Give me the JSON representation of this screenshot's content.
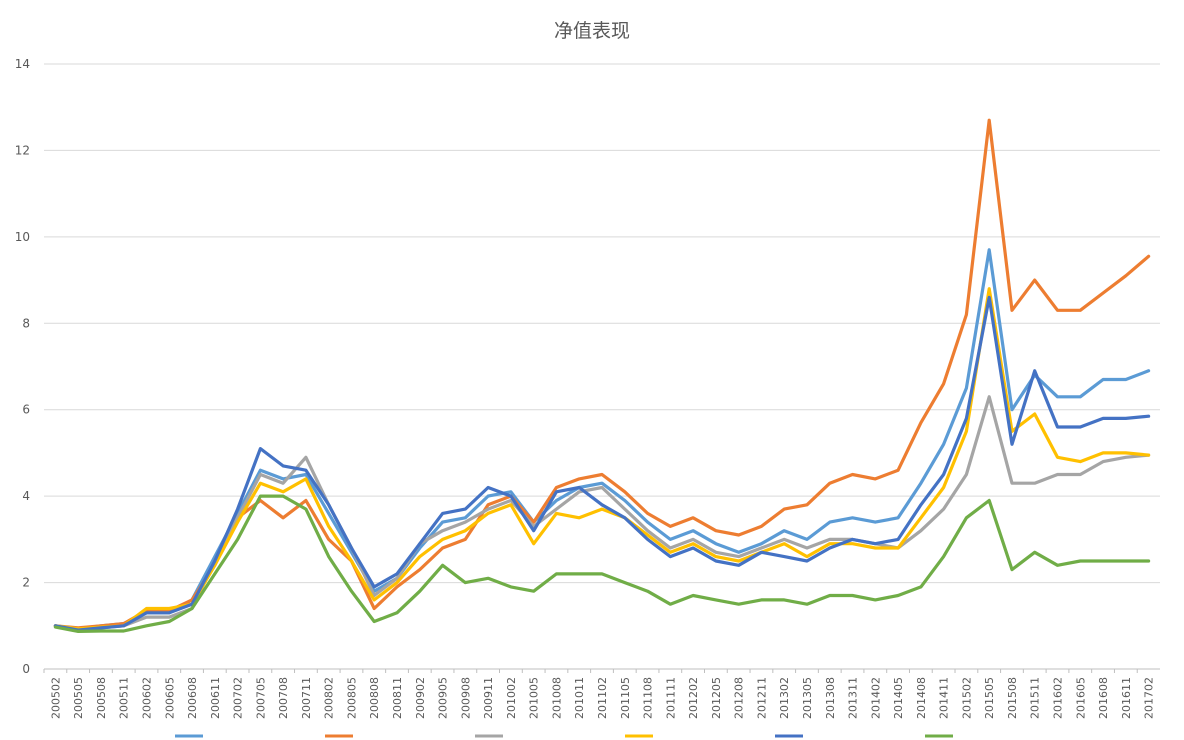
{
  "chart_data": {
    "type": "line",
    "title": "净值表现",
    "xlabel": "",
    "ylabel": "",
    "ylim": [
      0,
      14
    ],
    "yticks": [
      0,
      2,
      4,
      6,
      8,
      10,
      12,
      14
    ],
    "grid": true,
    "legend_position": "bottom",
    "x_tick_labels": [
      "200502",
      "200505",
      "200508",
      "200511",
      "200602",
      "200605",
      "200608",
      "200611",
      "200702",
      "200705",
      "200708",
      "200711",
      "200802",
      "200805",
      "200808",
      "200811",
      "200902",
      "200905",
      "200908",
      "200911",
      "201002",
      "201005",
      "201008",
      "201011",
      "201102",
      "201105",
      "201108",
      "201111",
      "201202",
      "201205",
      "201208",
      "201211",
      "201302",
      "201305",
      "201308",
      "201311",
      "201402",
      "201405",
      "201408",
      "201411",
      "201502",
      "201505",
      "201508",
      "201511",
      "201602",
      "201605",
      "201608",
      "201611",
      "201702"
    ],
    "series": [
      {
        "color": "#5B9BD5",
        "values": [
          1.0,
          0.93,
          1.0,
          1.05,
          1.3,
          1.3,
          1.6,
          2.6,
          3.6,
          4.6,
          4.4,
          4.5,
          3.6,
          2.7,
          1.8,
          2.1,
          2.8,
          3.4,
          3.5,
          4.0,
          4.1,
          3.4,
          3.9,
          4.2,
          4.3,
          3.9,
          3.4,
          3.0,
          3.2,
          2.9,
          2.7,
          2.9,
          3.2,
          3.0,
          3.4,
          3.5,
          3.4,
          3.5,
          4.3,
          5.2,
          6.5,
          9.7,
          6.0,
          6.8,
          6.3,
          6.3,
          6.7,
          6.7,
          6.9
        ]
      },
      {
        "color": "#ED7D31",
        "values": [
          1.0,
          0.95,
          1.0,
          1.05,
          1.35,
          1.35,
          1.6,
          2.4,
          3.5,
          3.9,
          3.5,
          3.9,
          3.0,
          2.5,
          1.4,
          1.9,
          2.3,
          2.8,
          3.0,
          3.8,
          4.0,
          3.4,
          4.2,
          4.4,
          4.5,
          4.1,
          3.6,
          3.3,
          3.5,
          3.2,
          3.1,
          3.3,
          3.7,
          3.8,
          4.3,
          4.5,
          4.4,
          4.6,
          5.7,
          6.6,
          8.2,
          12.7,
          8.3,
          9.0,
          8.3,
          8.3,
          8.7,
          9.1,
          9.55
        ]
      },
      {
        "color": "#A5A5A5",
        "values": [
          1.0,
          0.93,
          0.95,
          1.0,
          1.2,
          1.2,
          1.4,
          2.5,
          3.5,
          4.5,
          4.3,
          4.9,
          3.8,
          2.8,
          1.7,
          2.1,
          2.9,
          3.2,
          3.4,
          3.7,
          3.9,
          3.3,
          3.7,
          4.1,
          4.2,
          3.7,
          3.2,
          2.8,
          3.0,
          2.7,
          2.6,
          2.8,
          3.0,
          2.8,
          3.0,
          3.0,
          2.9,
          2.8,
          3.2,
          3.7,
          4.5,
          6.3,
          4.3,
          4.3,
          4.5,
          4.5,
          4.8,
          4.9,
          4.95
        ]
      },
      {
        "color": "#FFC000",
        "values": [
          1.0,
          0.93,
          0.97,
          1.0,
          1.4,
          1.4,
          1.5,
          2.4,
          3.4,
          4.3,
          4.1,
          4.4,
          3.3,
          2.5,
          1.6,
          2.0,
          2.6,
          3.0,
          3.2,
          3.6,
          3.8,
          2.9,
          3.6,
          3.5,
          3.7,
          3.5,
          3.1,
          2.7,
          2.9,
          2.6,
          2.5,
          2.7,
          2.9,
          2.6,
          2.9,
          2.9,
          2.8,
          2.8,
          3.5,
          4.2,
          5.5,
          8.8,
          5.5,
          5.9,
          4.9,
          4.8,
          5.0,
          5.0,
          4.95
        ]
      },
      {
        "color": "#4472C4",
        "values": [
          1.0,
          0.9,
          0.95,
          1.0,
          1.3,
          1.3,
          1.5,
          2.5,
          3.7,
          5.1,
          4.7,
          4.6,
          3.8,
          2.8,
          1.9,
          2.2,
          2.9,
          3.6,
          3.7,
          4.2,
          4.0,
          3.2,
          4.1,
          4.2,
          3.8,
          3.5,
          3.0,
          2.6,
          2.8,
          2.5,
          2.4,
          2.7,
          2.6,
          2.5,
          2.8,
          3.0,
          2.9,
          3.0,
          3.8,
          4.5,
          5.8,
          8.6,
          5.2,
          6.9,
          5.6,
          5.6,
          5.8,
          5.8,
          5.85
        ]
      },
      {
        "color": "#70AD47",
        "values": [
          0.97,
          0.87,
          0.88,
          0.88,
          1.0,
          1.1,
          1.4,
          2.2,
          3.0,
          4.0,
          4.0,
          3.7,
          2.6,
          1.8,
          1.1,
          1.3,
          1.8,
          2.4,
          2.0,
          2.1,
          1.9,
          1.8,
          2.2,
          2.2,
          2.2,
          2.0,
          1.8,
          1.5,
          1.7,
          1.6,
          1.5,
          1.6,
          1.6,
          1.5,
          1.7,
          1.7,
          1.6,
          1.7,
          1.9,
          2.6,
          3.5,
          3.9,
          2.3,
          2.7,
          2.4,
          2.5,
          2.5,
          2.5,
          2.5
        ]
      }
    ]
  }
}
